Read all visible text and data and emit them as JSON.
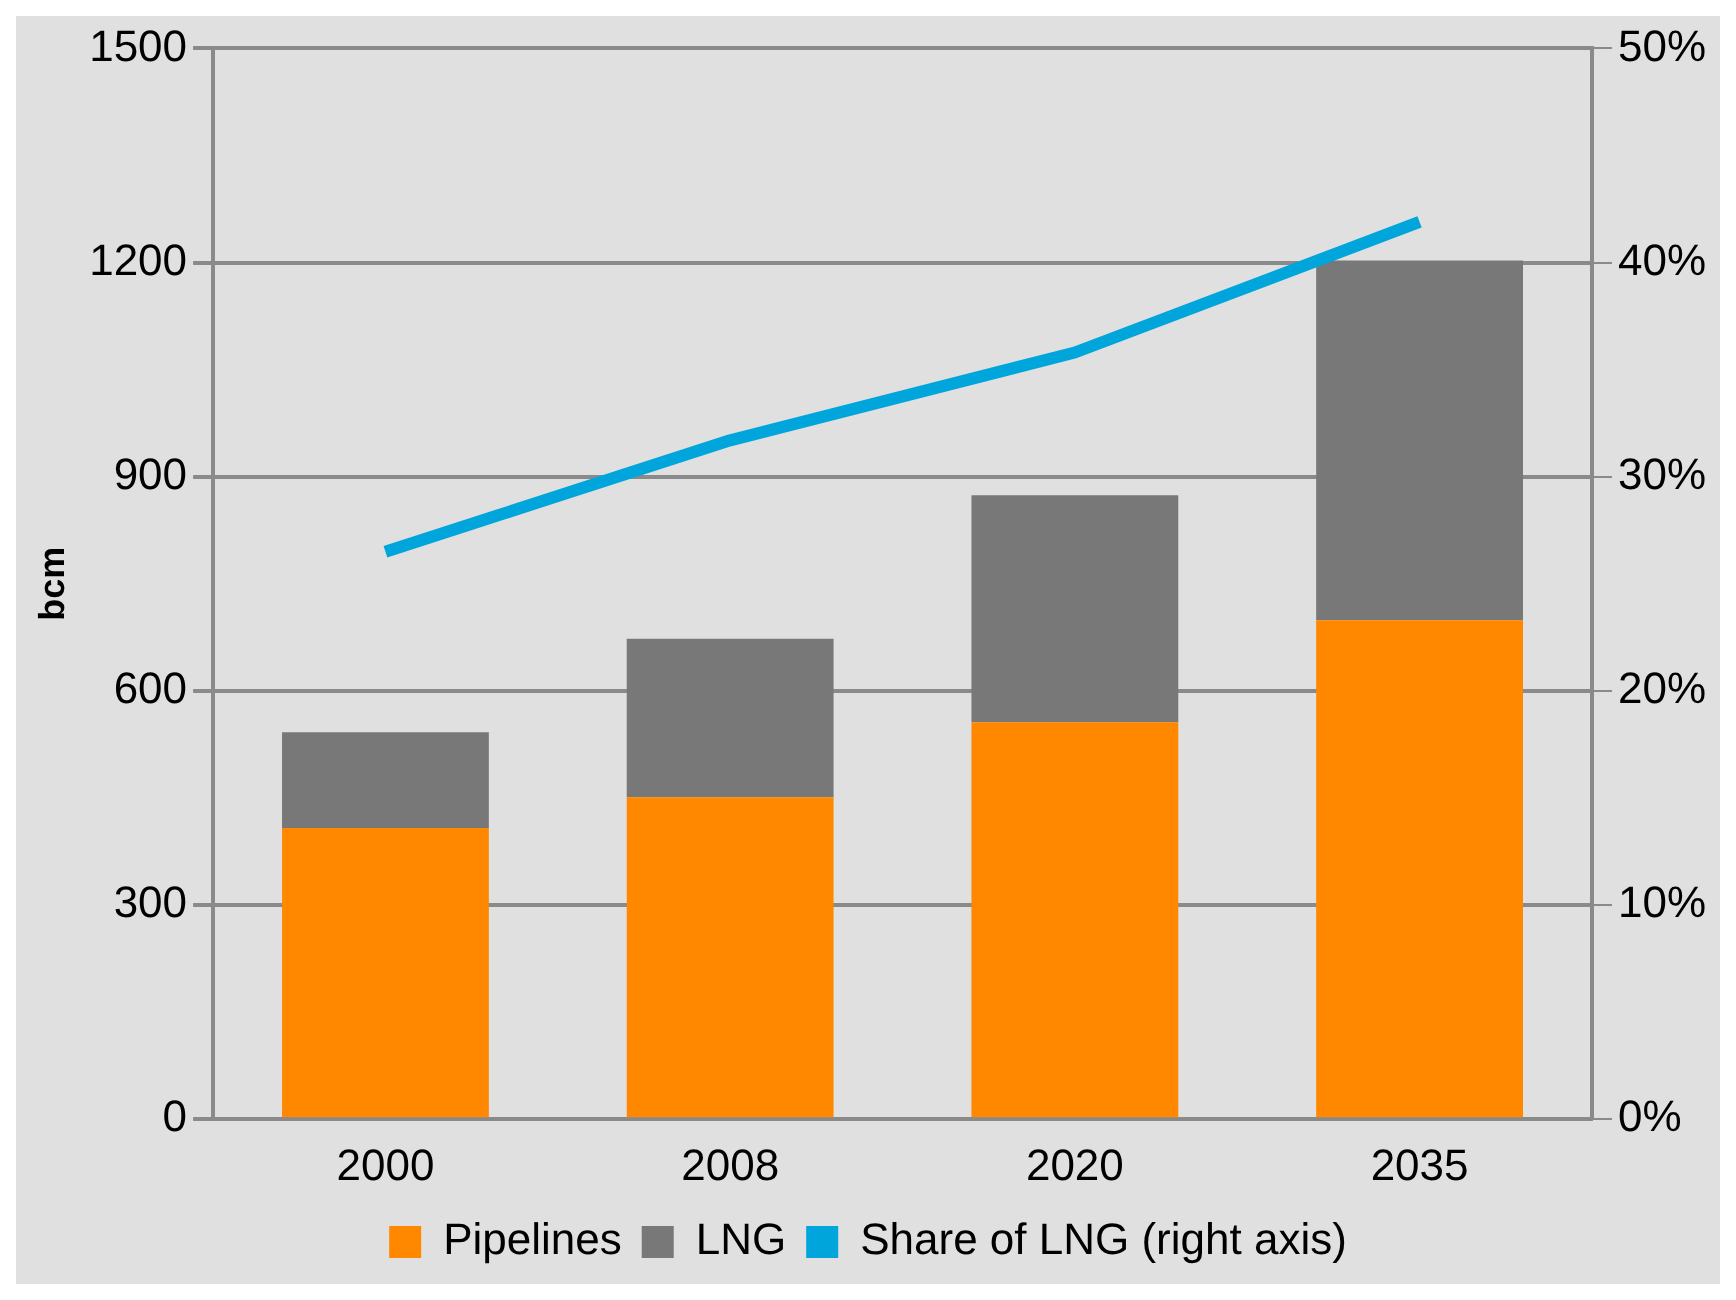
{
  "chart_data": {
    "type": "bar",
    "ylabel": "bcm",
    "categories": [
      "2000",
      "2008",
      "2020",
      "2035"
    ],
    "stacked": true,
    "ylim": [
      0,
      1500
    ],
    "yticks": [
      0,
      300,
      600,
      900,
      1200,
      1500
    ],
    "y2lim": [
      0,
      50
    ],
    "y2ticks": [
      {
        "value": 0,
        "label": "0%"
      },
      {
        "value": 10,
        "label": "10%"
      },
      {
        "value": 20,
        "label": "20%"
      },
      {
        "value": 30,
        "label": "30%"
      },
      {
        "value": 40,
        "label": "40%"
      },
      {
        "value": 50,
        "label": "50%"
      }
    ],
    "grid": "y",
    "legend": "bottom",
    "series": [
      {
        "name": "Pipelines",
        "color": "#ff8800",
        "values": [
          408,
          451,
          556,
          699
        ]
      },
      {
        "name": "LNG",
        "color": "#787878",
        "values": [
          134,
          222,
          318,
          504
        ]
      },
      {
        "name": "Share of LNG (right axis)",
        "type": "line",
        "axis": "y2",
        "color": "#00a6db",
        "values": [
          26.5,
          31.7,
          35.8,
          41.9
        ],
        "marker": "none"
      }
    ]
  }
}
